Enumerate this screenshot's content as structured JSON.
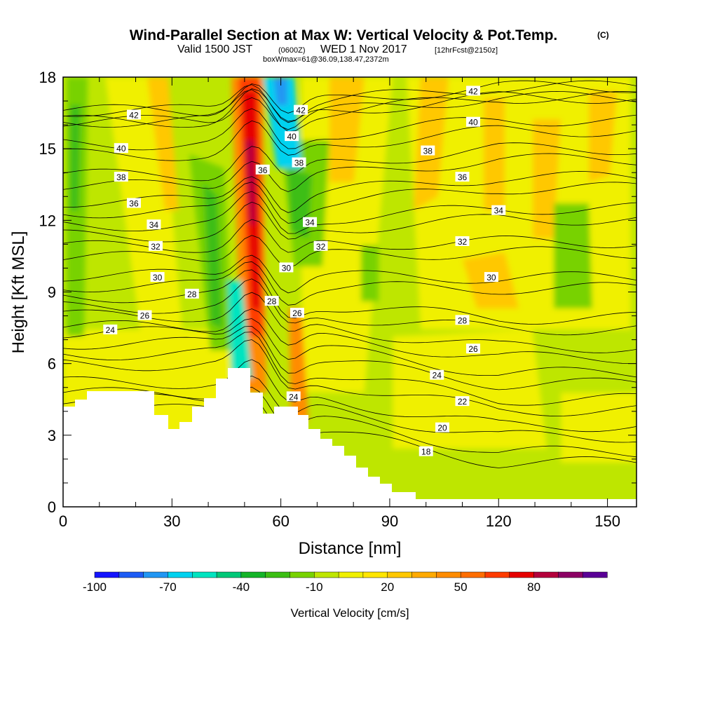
{
  "chart_data": {
    "type": "heatmap",
    "title": "Wind-Parallel Section at Max W: Vertical Velocity & Pot.Temp.",
    "title_mark": "(C)",
    "subtitle": {
      "valid": "Valid 1500 JST",
      "utc": "(0600Z)",
      "date": "WED 1 Nov 2017",
      "forecast": "[12hrFcst@2150z]"
    },
    "box_info": "boxWmax=61@36.09,138.47,2372m",
    "xlabel": "Distance [nm]",
    "ylabel": "Height [Kft MSL]",
    "xlim": [
      0,
      158
    ],
    "ylim": [
      0,
      18
    ],
    "x_ticks": [
      "0",
      "30",
      "60",
      "90",
      "120",
      "150"
    ],
    "y_ticks": [
      "0",
      "3",
      "6",
      "9",
      "12",
      "15",
      "18"
    ],
    "colorbar": {
      "label": "Vertical Velocity [cm/s]",
      "ticks": [
        "-100",
        "-70",
        "-40",
        "-10",
        "20",
        "50",
        "80"
      ],
      "colors": [
        "#1414ff",
        "#1d5cf5",
        "#2196f3",
        "#00d2f0",
        "#00e4c0",
        "#00c878",
        "#14b428",
        "#3cbe14",
        "#78d200",
        "#bee600",
        "#f0f000",
        "#ffe600",
        "#ffc800",
        "#ffaa00",
        "#ff8c00",
        "#ff6e00",
        "#ff3c00",
        "#e60000",
        "#b4003c",
        "#8c0064",
        "#5a0096"
      ]
    },
    "theta_labels": [
      {
        "text": "42",
        "x": 19.5,
        "y": 16.4
      },
      {
        "text": "40",
        "x": 16,
        "y": 15.0
      },
      {
        "text": "38",
        "x": 16,
        "y": 13.8
      },
      {
        "text": "36",
        "x": 19.5,
        "y": 12.7
      },
      {
        "text": "34",
        "x": 25,
        "y": 11.8
      },
      {
        "text": "32",
        "x": 25.5,
        "y": 10.9
      },
      {
        "text": "30",
        "x": 26,
        "y": 9.6
      },
      {
        "text": "28",
        "x": 35.5,
        "y": 8.9
      },
      {
        "text": "26",
        "x": 22.5,
        "y": 8.0
      },
      {
        "text": "24",
        "x": 13,
        "y": 7.4
      },
      {
        "text": "42",
        "x": 65.5,
        "y": 16.6
      },
      {
        "text": "40",
        "x": 63,
        "y": 15.5
      },
      {
        "text": "38",
        "x": 65,
        "y": 14.4
      },
      {
        "text": "36",
        "x": 55,
        "y": 14.1
      },
      {
        "text": "34",
        "x": 68,
        "y": 11.9
      },
      {
        "text": "32",
        "x": 71,
        "y": 10.9
      },
      {
        "text": "30",
        "x": 61.5,
        "y": 10.0
      },
      {
        "text": "28",
        "x": 57.5,
        "y": 8.6
      },
      {
        "text": "26",
        "x": 64.5,
        "y": 8.1
      },
      {
        "text": "24",
        "x": 63.5,
        "y": 4.6
      },
      {
        "text": "42",
        "x": 113,
        "y": 17.4
      },
      {
        "text": "40",
        "x": 113,
        "y": 16.1
      },
      {
        "text": "38",
        "x": 100.5,
        "y": 14.9
      },
      {
        "text": "36",
        "x": 110,
        "y": 13.8
      },
      {
        "text": "34",
        "x": 120,
        "y": 12.4
      },
      {
        "text": "32",
        "x": 110,
        "y": 11.1
      },
      {
        "text": "30",
        "x": 118,
        "y": 9.6
      },
      {
        "text": "28",
        "x": 110,
        "y": 7.8
      },
      {
        "text": "26",
        "x": 113,
        "y": 6.6
      },
      {
        "text": "24",
        "x": 103,
        "y": 5.5
      },
      {
        "text": "22",
        "x": 110,
        "y": 4.4
      },
      {
        "text": "20",
        "x": 104.5,
        "y": 3.3
      },
      {
        "text": "18",
        "x": 100,
        "y": 2.3
      }
    ]
  }
}
